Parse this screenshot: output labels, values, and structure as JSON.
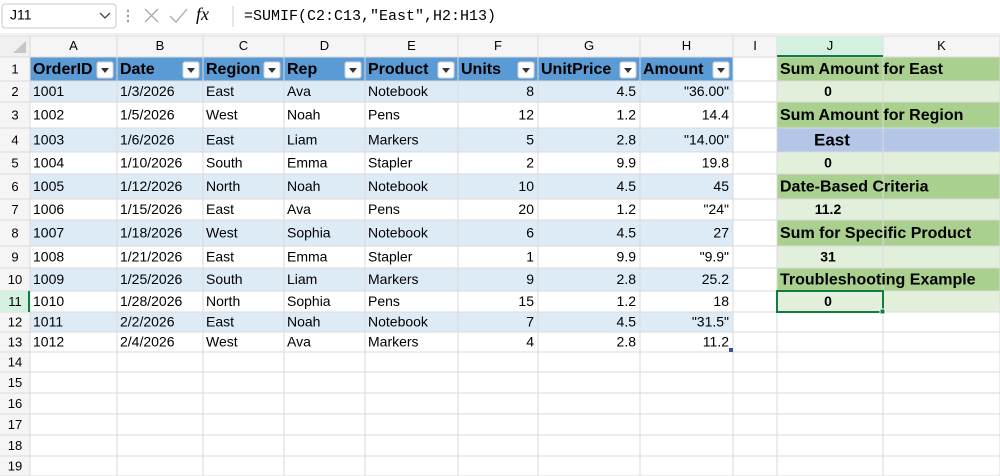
{
  "formula_bar": {
    "name_box": "J11",
    "function_icon": "fx",
    "formula": "=SUMIF(C2:C13,\"East\",H2:H13)"
  },
  "columns": [
    "A",
    "B",
    "C",
    "D",
    "E",
    "F",
    "G",
    "H",
    "I",
    "J",
    "K"
  ],
  "row_numbers": [
    "1",
    "2",
    "3",
    "4",
    "5",
    "6",
    "7",
    "8",
    "9",
    "10",
    "11",
    "12",
    "13",
    "14",
    "15",
    "16",
    "17",
    "18",
    "19"
  ],
  "table": {
    "headers": [
      "OrderID",
      "Date",
      "Region",
      "Rep",
      "Product",
      "Units",
      "UnitPrice",
      "Amount"
    ],
    "rows": [
      [
        "1001",
        "1/3/2026",
        "East",
        "Ava",
        "Notebook",
        "8",
        "4.5",
        "\"36.00\""
      ],
      [
        "1002",
        "1/5/2026",
        "West",
        "Noah",
        "Pens",
        "12",
        "1.2",
        "14.4"
      ],
      [
        "1003",
        "1/6/2026",
        "East",
        "Liam",
        "Markers",
        "5",
        "2.8",
        "\"14.00\""
      ],
      [
        "1004",
        "1/10/2026",
        "South",
        "Emma",
        "Stapler",
        "2",
        "9.9",
        "19.8"
      ],
      [
        "1005",
        "1/12/2026",
        "North",
        "Noah",
        "Notebook",
        "10",
        "4.5",
        "45"
      ],
      [
        "1006",
        "1/15/2026",
        "East",
        "Ava",
        "Pens",
        "20",
        "1.2",
        "\"24\""
      ],
      [
        "1007",
        "1/18/2026",
        "West",
        "Sophia",
        "Notebook",
        "6",
        "4.5",
        "27"
      ],
      [
        "1008",
        "1/21/2026",
        "East",
        "Emma",
        "Stapler",
        "1",
        "9.9",
        "\"9.9\""
      ],
      [
        "1009",
        "1/25/2026",
        "South",
        "Liam",
        "Markers",
        "9",
        "2.8",
        "25.2"
      ],
      [
        "1010",
        "1/28/2026",
        "North",
        "Sophia",
        "Pens",
        "15",
        "1.2",
        "18"
      ],
      [
        "1011",
        "2/2/2026",
        "East",
        "Noah",
        "Notebook",
        "7",
        "4.5",
        "\"31.5\""
      ],
      [
        "1012",
        "2/4/2026",
        "West",
        "Ava",
        "Markers",
        "4",
        "2.8",
        "11.2"
      ]
    ]
  },
  "summary": [
    "Sum Amount for East",
    "0",
    "Sum Amount for Region",
    "East",
    "0",
    "Date-Based Criteria",
    "11.2",
    "Sum for Specific Product",
    "31",
    "Troubleshooting Example",
    "0"
  ]
}
